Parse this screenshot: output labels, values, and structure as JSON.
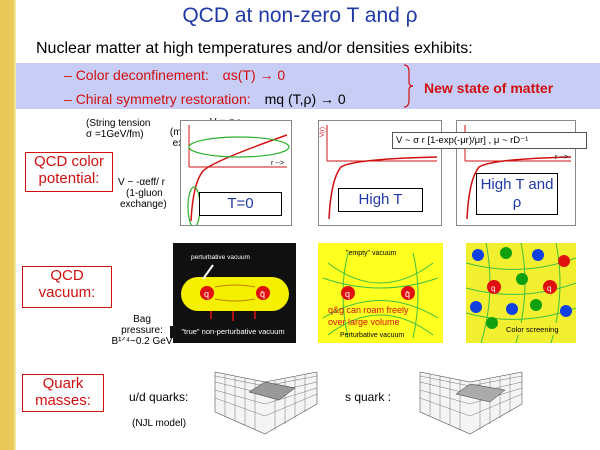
{
  "title": "QCD at non-zero T and ρ",
  "subtitle": "Nuclear matter at high temperatures and/or densities exhibits:",
  "bullets": [
    {
      "dash": "–",
      "text": "Color deconfinement:",
      "formula": "αs(T) → 0"
    },
    {
      "dash": "–",
      "text": "Chiral symmetry restoration:",
      "formula": "mq (T,ρ) → 0"
    }
  ],
  "new_state": "New state of matter",
  "potential": {
    "label_line1": "QCD color",
    "label_line2": "potential:",
    "string_tension_1": "(String tension",
    "string_tension_2": "σ =1GeV/fm)",
    "v_sigma_r": "V = σ r",
    "multi_gluon_1": "(multi-gluon",
    "multi_gluon_2": "exchange)",
    "v_alpha_1": "V ~ -αeff/ r",
    "v_alpha_2": "(1-gluon",
    "v_alpha_3": "exchange)",
    "high_t_formula": "V ~ σ r [1-exp(-μr)/μr] , μ ~ rD⁻¹",
    "axis_v": "V(r)",
    "axis_r": "r -->",
    "panels": [
      "T=0",
      "High T",
      "High T and ρ"
    ]
  },
  "vacuum": {
    "label_line1": "QCD",
    "label_line2": "vacuum:",
    "perturbative": "perturbative vacuum",
    "true_vacuum": "\"true\" non-perturbative vacuum",
    "bag_1": "Bag",
    "bag_2": "pressure:",
    "bag_3": "B¹ᐟ⁴~0.2 GeV",
    "q": "q",
    "qbar": "q̄",
    "empty_vacuum": "\"empty\" vacuum",
    "roam_1": "q&g can roam freely",
    "roam_2": "over large volume",
    "pert_vacuum": "Perturbative vacuum",
    "color_screening": "Color screening"
  },
  "masses": {
    "label_line1": "Quark",
    "label_line2": "masses:",
    "ud": "u/d quarks:",
    "s": "s quark :",
    "njl": "(NJL model)"
  },
  "colors": {
    "title_blue": "#1f3aa8",
    "accent_red": "#d01010",
    "band": "#c8cdf5"
  }
}
